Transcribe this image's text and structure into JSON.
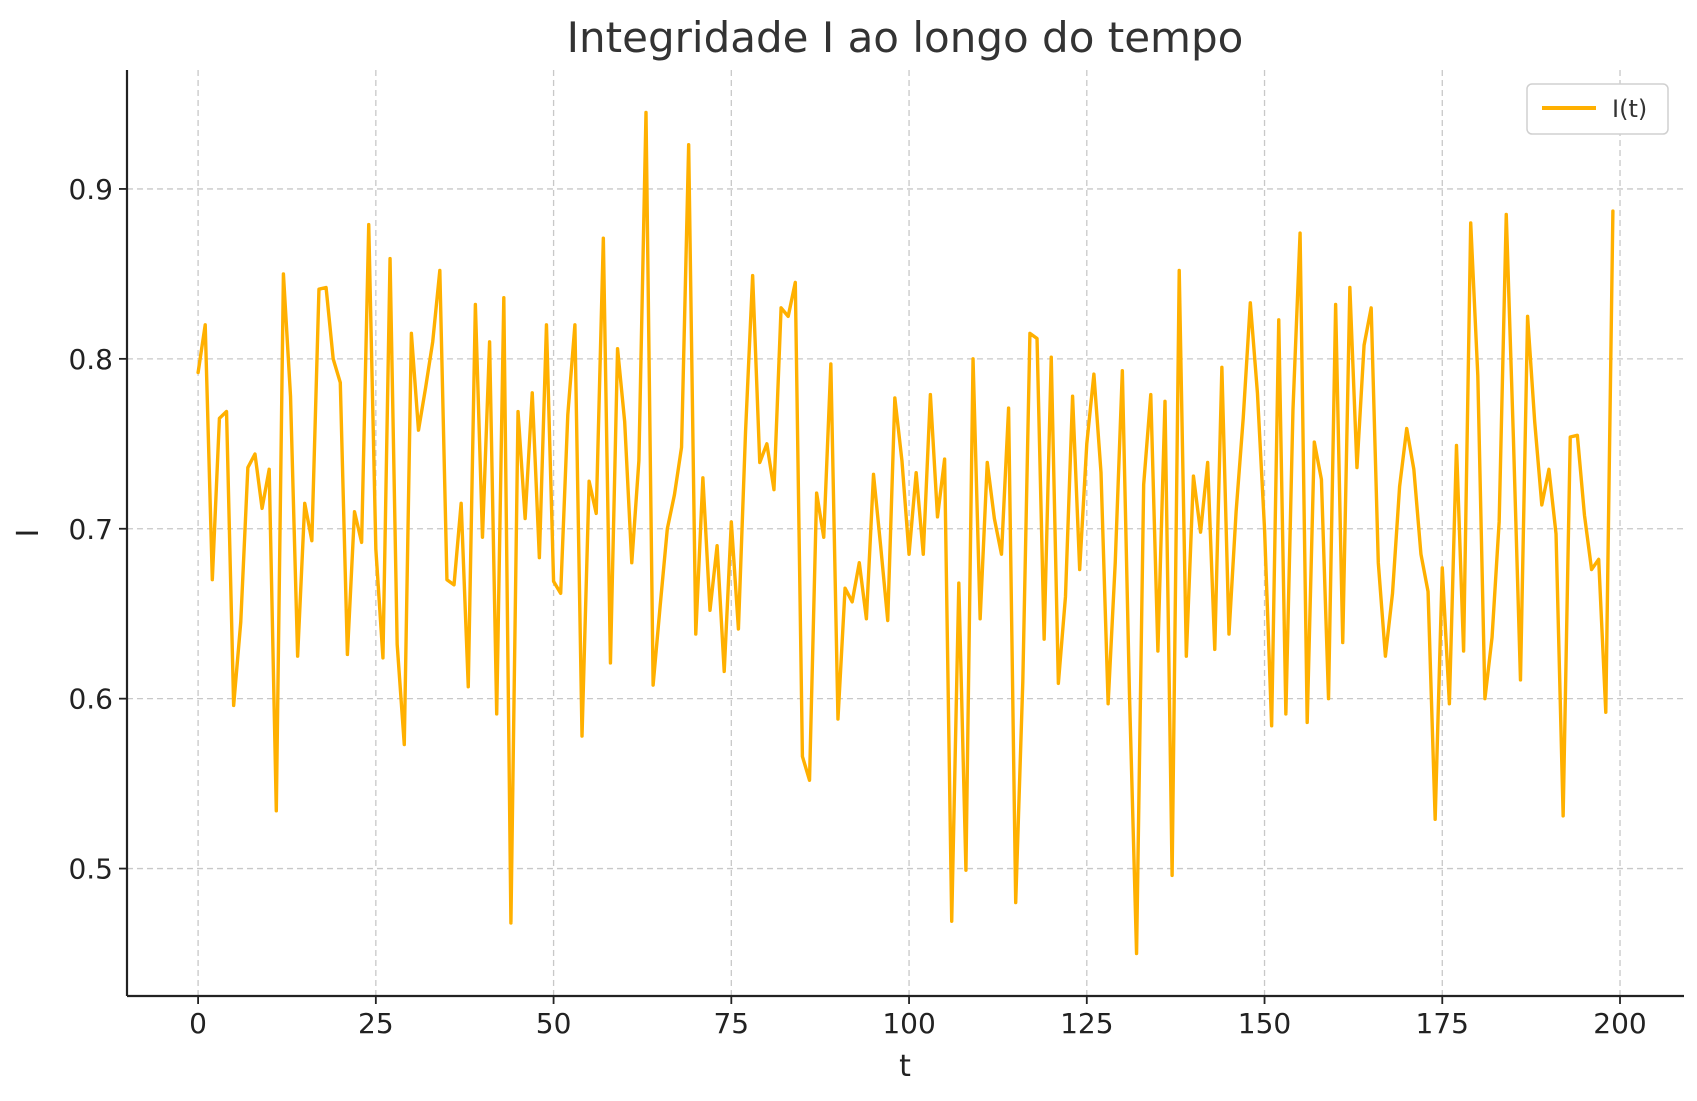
{
  "chart_data": {
    "type": "line",
    "title": "Integridade I ao longo do tempo",
    "xlabel": "t",
    "ylabel": "I",
    "xlim": [
      -10,
      209
    ],
    "ylim": [
      0.425,
      0.97
    ],
    "xticks": [
      0,
      25,
      50,
      75,
      100,
      125,
      150,
      175,
      200
    ],
    "yticks": [
      0.5,
      0.6,
      0.7,
      0.8,
      0.9
    ],
    "xtick_labels": [
      "0",
      "25",
      "50",
      "75",
      "100",
      "125",
      "150",
      "175",
      "200"
    ],
    "ytick_labels": [
      "0.5",
      "0.6",
      "0.7",
      "0.8",
      "0.9"
    ],
    "grid": true,
    "legend_position": "top-right",
    "series": [
      {
        "name": "I(t)",
        "color": "#FFB000",
        "x": [
          0,
          1,
          2,
          3,
          4,
          5,
          6,
          7,
          8,
          9,
          10,
          11,
          12,
          13,
          14,
          15,
          16,
          17,
          18,
          19,
          20,
          21,
          22,
          23,
          24,
          25,
          26,
          27,
          28,
          29,
          30,
          31,
          32,
          33,
          34,
          35,
          36,
          37,
          38,
          39,
          40,
          41,
          42,
          43,
          44,
          45,
          46,
          47,
          48,
          49,
          50,
          51,
          52,
          53,
          54,
          55,
          56,
          57,
          58,
          59,
          60,
          61,
          62,
          63,
          64,
          65,
          66,
          67,
          68,
          69,
          70,
          71,
          72,
          73,
          74,
          75,
          76,
          77,
          78,
          79,
          80,
          81,
          82,
          83,
          84,
          85,
          86,
          87,
          88,
          89,
          90,
          91,
          92,
          93,
          94,
          95,
          96,
          97,
          98,
          99,
          100,
          101,
          102,
          103,
          104,
          105,
          106,
          107,
          108,
          109,
          110,
          111,
          112,
          113,
          114,
          115,
          116,
          117,
          118,
          119,
          120,
          121,
          122,
          123,
          124,
          125,
          126,
          127,
          128,
          129,
          130,
          131,
          132,
          133,
          134,
          135,
          136,
          137,
          138,
          139,
          140,
          141,
          142,
          143,
          144,
          145,
          146,
          147,
          148,
          149,
          150,
          151,
          152,
          153,
          154,
          155,
          156,
          157,
          158,
          159,
          160,
          161,
          162,
          163,
          164,
          165,
          166,
          167,
          168,
          169,
          170,
          171,
          172,
          173,
          174,
          175,
          176,
          177,
          178,
          179,
          180,
          181,
          182,
          183,
          184,
          185,
          186,
          187,
          188,
          189,
          190,
          191,
          192,
          193,
          194,
          195,
          196,
          197,
          198,
          199
        ],
        "values": [
          0.792,
          0.82,
          0.67,
          0.765,
          0.769,
          0.596,
          0.645,
          0.736,
          0.744,
          0.712,
          0.735,
          0.534,
          0.85,
          0.778,
          0.625,
          0.715,
          0.693,
          0.841,
          0.842,
          0.8,
          0.786,
          0.626,
          0.71,
          0.692,
          0.879,
          0.688,
          0.624,
          0.859,
          0.632,
          0.573,
          0.815,
          0.758,
          0.783,
          0.81,
          0.852,
          0.67,
          0.667,
          0.715,
          0.607,
          0.832,
          0.695,
          0.81,
          0.591,
          0.836,
          0.468,
          0.769,
          0.706,
          0.78,
          0.683,
          0.82,
          0.669,
          0.662,
          0.767,
          0.82,
          0.578,
          0.728,
          0.709,
          0.871,
          0.621,
          0.806,
          0.763,
          0.68,
          0.74,
          0.945,
          0.608,
          0.655,
          0.7,
          0.72,
          0.748,
          0.926,
          0.638,
          0.73,
          0.652,
          0.69,
          0.616,
          0.704,
          0.641,
          0.757,
          0.849,
          0.739,
          0.75,
          0.723,
          0.83,
          0.825,
          0.845,
          0.566,
          0.552,
          0.721,
          0.695,
          0.797,
          0.588,
          0.665,
          0.657,
          0.68,
          0.647,
          0.732,
          0.69,
          0.646,
          0.777,
          0.74,
          0.685,
          0.733,
          0.685,
          0.779,
          0.707,
          0.741,
          0.469,
          0.668,
          0.499,
          0.8,
          0.647,
          0.739,
          0.706,
          0.685,
          0.771,
          0.48,
          0.61,
          0.815,
          0.812,
          0.635,
          0.801,
          0.609,
          0.66,
          0.778,
          0.676,
          0.75,
          0.791,
          0.733,
          0.597,
          0.68,
          0.793,
          0.603,
          0.45,
          0.726,
          0.779,
          0.628,
          0.775,
          0.496,
          0.852,
          0.625,
          0.731,
          0.698,
          0.739,
          0.629,
          0.795,
          0.638,
          0.71,
          0.765,
          0.833,
          0.78,
          0.7,
          0.584,
          0.823,
          0.591,
          0.77,
          0.874,
          0.586,
          0.751,
          0.729,
          0.6,
          0.832,
          0.633,
          0.842,
          0.736,
          0.808,
          0.83,
          0.68,
          0.625,
          0.662,
          0.725,
          0.759,
          0.735,
          0.685,
          0.663,
          0.529,
          0.677,
          0.597,
          0.749,
          0.628,
          0.88,
          0.79,
          0.6,
          0.636,
          0.704,
          0.885,
          0.754,
          0.611,
          0.825,
          0.763,
          0.714,
          0.735,
          0.697,
          0.531,
          0.754,
          0.755,
          0.708,
          0.676,
          0.682,
          0.592,
          0.887
        ]
      }
    ]
  }
}
